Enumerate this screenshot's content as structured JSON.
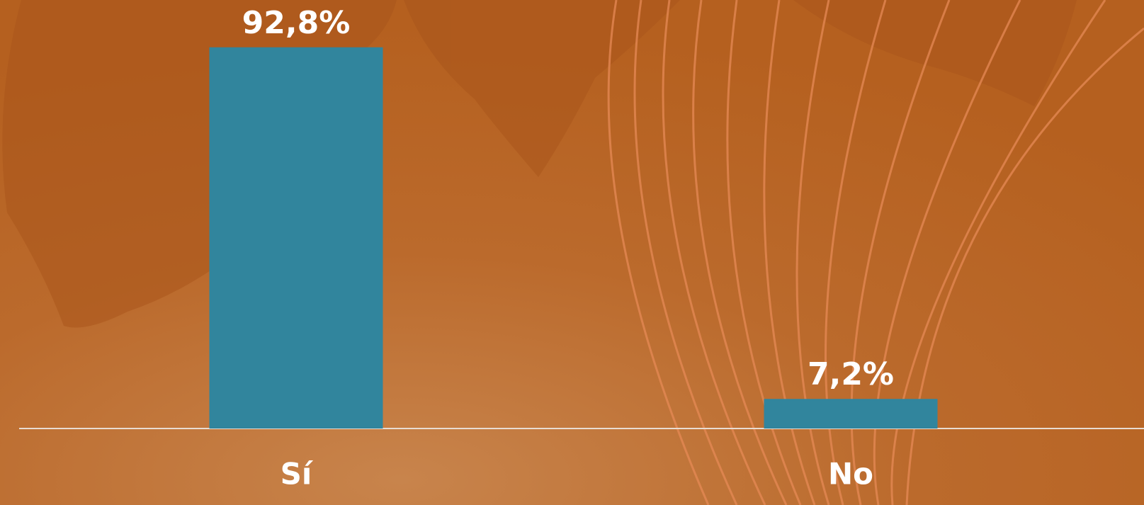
{
  "chart_data": {
    "type": "bar",
    "categories": [
      "Sí",
      "No"
    ],
    "values": [
      92.8,
      7.2
    ],
    "value_labels": [
      "92,8%",
      "7,2%"
    ],
    "color": "#31859d",
    "ylim": [
      0,
      100
    ]
  }
}
